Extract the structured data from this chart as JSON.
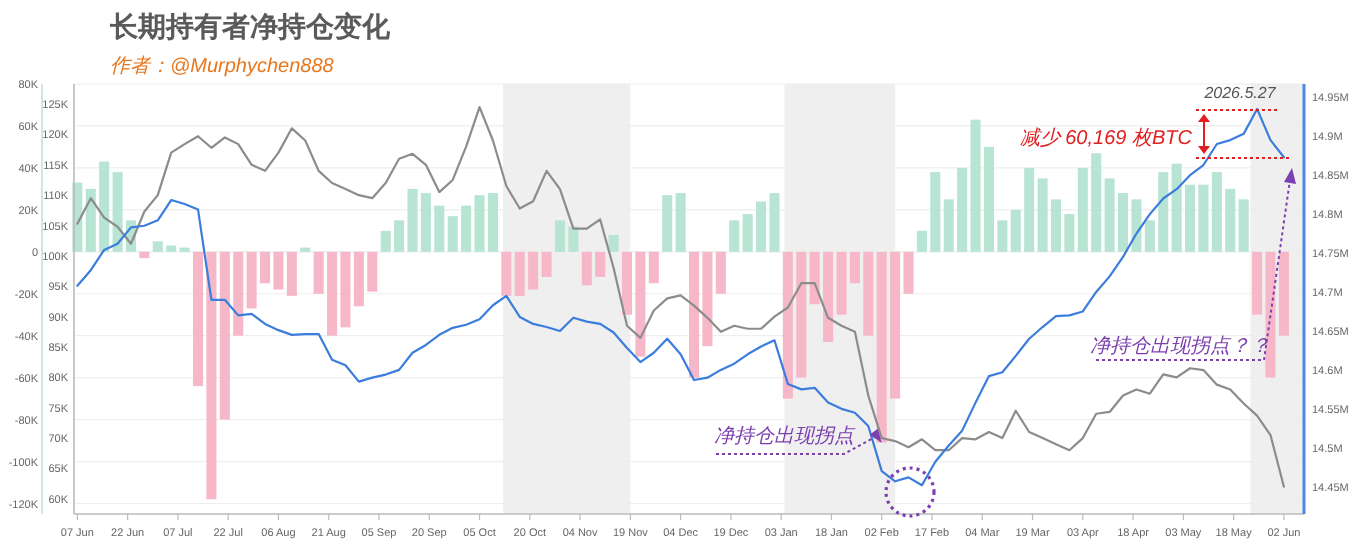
{
  "chart_data": {
    "type": "bar",
    "title": "长期持有者净持仓变化",
    "subtitle": "作者：@Murphychen888",
    "x": [
      "2025-06-07",
      "2025-06-11",
      "2025-06-15",
      "2025-06-19",
      "2025-06-23",
      "2025-06-27",
      "2025-07-01",
      "2025-07-05",
      "2025-07-09",
      "2025-07-13",
      "2025-07-17",
      "2025-07-21",
      "2025-07-25",
      "2025-07-29",
      "2025-08-02",
      "2025-08-06",
      "2025-08-10",
      "2025-08-14",
      "2025-08-18",
      "2025-08-22",
      "2025-08-26",
      "2025-08-30",
      "2025-09-03",
      "2025-09-07",
      "2025-09-11",
      "2025-09-15",
      "2025-09-19",
      "2025-09-23",
      "2025-09-27",
      "2025-10-01",
      "2025-10-05",
      "2025-10-09",
      "2025-10-13",
      "2025-10-17",
      "2025-10-21",
      "2025-10-25",
      "2025-10-29",
      "2025-11-02",
      "2025-11-06",
      "2025-11-10",
      "2025-11-14",
      "2025-11-18",
      "2025-11-22",
      "2025-11-26",
      "2025-11-30",
      "2025-12-04",
      "2025-12-08",
      "2025-12-12",
      "2025-12-16",
      "2025-12-20",
      "2025-12-24",
      "2025-12-28",
      "2026-01-01",
      "2026-01-05",
      "2026-01-09",
      "2026-01-13",
      "2026-01-17",
      "2026-01-21",
      "2026-01-25",
      "2026-01-29",
      "2026-02-02",
      "2026-02-06",
      "2026-02-10",
      "2026-02-14",
      "2026-02-18",
      "2026-02-22",
      "2026-02-26",
      "2026-03-02",
      "2026-03-06",
      "2026-03-10",
      "2026-03-14",
      "2026-03-18",
      "2026-03-22",
      "2026-03-26",
      "2026-03-30",
      "2026-04-03",
      "2026-04-07",
      "2026-04-11",
      "2026-04-15",
      "2026-04-19",
      "2026-04-23",
      "2026-04-27",
      "2026-05-01",
      "2026-05-05",
      "2026-05-09",
      "2026-05-13",
      "2026-05-17",
      "2026-05-21",
      "2026-05-25",
      "2026-05-29",
      "2026-06-02"
    ],
    "xlim": [
      "2025-06-06",
      "2026-06-08"
    ],
    "xticks": [
      {
        "value": "2025-06-07",
        "label": "07 Jun"
      },
      {
        "value": "2025-06-22",
        "label": "22 Jun"
      },
      {
        "value": "2025-07-07",
        "label": "07 Jul"
      },
      {
        "value": "2025-07-22",
        "label": "22 Jul"
      },
      {
        "value": "2025-08-06",
        "label": "06 Aug"
      },
      {
        "value": "2025-08-21",
        "label": "21 Aug"
      },
      {
        "value": "2025-09-05",
        "label": "05 Sep"
      },
      {
        "value": "2025-09-20",
        "label": "20 Sep"
      },
      {
        "value": "2025-10-05",
        "label": "05 Oct"
      },
      {
        "value": "2025-10-20",
        "label": "20 Oct"
      },
      {
        "value": "2025-11-04",
        "label": "04 Nov"
      },
      {
        "value": "2025-11-19",
        "label": "19 Nov"
      },
      {
        "value": "2025-12-04",
        "label": "04 Dec"
      },
      {
        "value": "2025-12-19",
        "label": "19 Dec"
      },
      {
        "value": "2026-01-03",
        "label": "03 Jan"
      },
      {
        "value": "2026-01-18",
        "label": "18 Jan"
      },
      {
        "value": "2026-02-02",
        "label": "02 Feb"
      },
      {
        "value": "2026-02-17",
        "label": "17 Feb"
      },
      {
        "value": "2026-03-04",
        "label": "04 Mar"
      },
      {
        "value": "2026-03-19",
        "label": "19 Mar"
      },
      {
        "value": "2026-04-03",
        "label": "03 Apr"
      },
      {
        "value": "2026-04-18",
        "label": "18 Apr"
      },
      {
        "value": "2026-05-03",
        "label": "03 May"
      },
      {
        "value": "2026-05-18",
        "label": "18 May"
      },
      {
        "value": "2026-06-02",
        "label": "02 Jun"
      }
    ],
    "ylim": [
      -125,
      80
    ],
    "yticks": [
      {
        "value": 80,
        "label": "80K"
      },
      {
        "value": 60,
        "label": "60K"
      },
      {
        "value": 40,
        "label": "40K"
      },
      {
        "value": 20,
        "label": "20K"
      },
      0,
      {
        "value": -20,
        "label": "-20K"
      },
      {
        "value": -40,
        "label": "-40K"
      },
      {
        "value": -60,
        "label": "-60K"
      },
      {
        "value": -80,
        "label": "-80K"
      },
      {
        "value": -100,
        "label": "-100K"
      },
      {
        "value": -120,
        "label": "-120K"
      }
    ],
    "y2lim": [
      57.5,
      128.3
    ],
    "y2ticks": [
      {
        "value": 60,
        "label": "60K"
      },
      {
        "value": 65,
        "label": "65K"
      },
      {
        "value": 70,
        "label": "70K"
      },
      {
        "value": 75,
        "label": "75K"
      },
      {
        "value": 80,
        "label": "80K"
      },
      {
        "value": 85,
        "label": "85K"
      },
      {
        "value": 90,
        "label": "90K"
      },
      {
        "value": 95,
        "label": "95K"
      },
      {
        "value": 100,
        "label": "100K"
      },
      {
        "value": 105,
        "label": "105K"
      },
      {
        "value": 110,
        "label": "110K"
      },
      {
        "value": 115,
        "label": "115K"
      },
      {
        "value": 120,
        "label": "120K"
      },
      {
        "value": 125,
        "label": "125K"
      }
    ],
    "y3lim": [
      14.415,
      14.967
    ],
    "y3ticks": [
      {
        "value": 14.45,
        "label": "14.45M"
      },
      {
        "value": 14.5,
        "label": "14.5M"
      },
      {
        "value": 14.55,
        "label": "14.55M"
      },
      {
        "value": 14.6,
        "label": "14.6M"
      },
      {
        "value": 14.65,
        "label": "14.65M"
      },
      {
        "value": 14.7,
        "label": "14.7M"
      },
      {
        "value": 14.75,
        "label": "14.75M"
      },
      {
        "value": 14.8,
        "label": "14.8M"
      },
      {
        "value": 14.85,
        "label": "14.85M"
      },
      {
        "value": 14.9,
        "label": "14.9M"
      },
      {
        "value": 14.95,
        "label": "14.95M"
      }
    ],
    "grid": "y",
    "bands": [
      {
        "axis": "x",
        "from": "2025-10-12",
        "to": "2025-11-19",
        "color": "#efefef"
      },
      {
        "axis": "x",
        "from": "2026-01-04",
        "to": "2026-02-06",
        "color": "#efefef"
      },
      {
        "axis": "x",
        "from": "2026-05-23",
        "to": "2026-06-08",
        "color": "#efefef"
      }
    ],
    "annotations": [
      "2026.5.27",
      "减少 60,169 枚BTC",
      "净持仓出现拐点？？",
      {
        "text": "净持仓出现拐点",
        "x": "2026-02-02",
        "y": -91
      }
    ],
    "series": [
      {
        "values": [
          33,
          30,
          43,
          38,
          15,
          -3,
          5,
          3,
          2,
          -64,
          -118,
          -80,
          -40,
          -27,
          -15,
          -18,
          -21,
          2,
          -20,
          -40,
          -36,
          -26,
          -19,
          10,
          15,
          30,
          28,
          22,
          17,
          22,
          27,
          28,
          -21,
          -21,
          -18,
          -12,
          15,
          12,
          -16,
          -12,
          8,
          -30,
          -50,
          -15,
          27,
          28,
          -60,
          -45,
          -20,
          15,
          18,
          24,
          28,
          -70,
          -60,
          -25,
          -43,
          -30,
          -15,
          -40,
          -91,
          -70,
          -20,
          10,
          38,
          25,
          40,
          63,
          50,
          15,
          20,
          40,
          35,
          25,
          18,
          40,
          47,
          35,
          28,
          25,
          15,
          38,
          42,
          32,
          32,
          38,
          30,
          25,
          -30,
          -60,
          -40
        ],
        "colors": [
          "#b7e4d3",
          "#b7e4d3",
          "#b7e4d3",
          "#b7e4d3",
          "#b7e4d3",
          "#f6b8c8",
          "#b7e4d3",
          "#b7e4d3",
          "#b7e4d3",
          "#f6b8c8",
          "#f6b8c8",
          "#f6b8c8",
          "#f6b8c8",
          "#f6b8c8",
          "#f6b8c8",
          "#f6b8c8",
          "#f6b8c8",
          "#b7e4d3",
          "#f6b8c8",
          "#f6b8c8",
          "#f6b8c8",
          "#f6b8c8",
          "#f6b8c8",
          "#b7e4d3",
          "#b7e4d3",
          "#b7e4d3",
          "#b7e4d3",
          "#b7e4d3",
          "#b7e4d3",
          "#b7e4d3",
          "#b7e4d3",
          "#b7e4d3",
          "#f6b8c8",
          "#f6b8c8",
          "#f6b8c8",
          "#f6b8c8",
          "#b7e4d3",
          "#b7e4d3",
          "#f6b8c8",
          "#f6b8c8",
          "#b7e4d3",
          "#f6b8c8",
          "#f6b8c8",
          "#f6b8c8",
          "#b7e4d3",
          "#b7e4d3",
          "#f6b8c8",
          "#f6b8c8",
          "#f6b8c8",
          "#b7e4d3",
          "#b7e4d3",
          "#b7e4d3",
          "#b7e4d3",
          "#f6b8c8",
          "#f6b8c8",
          "#f6b8c8",
          "#f6b8c8",
          "#f6b8c8",
          "#f6b8c8",
          "#f6b8c8",
          "#f6b8c8",
          "#f6b8c8",
          "#f6b8c8",
          "#b7e4d3",
          "#b7e4d3",
          "#b7e4d3",
          "#b7e4d3",
          "#b7e4d3",
          "#b7e4d3",
          "#b7e4d3",
          "#b7e4d3",
          "#b7e4d3",
          "#b7e4d3",
          "#b7e4d3",
          "#b7e4d3",
          "#b7e4d3",
          "#b7e4d3",
          "#b7e4d3",
          "#b7e4d3",
          "#b7e4d3",
          "#b7e4d3",
          "#b7e4d3",
          "#b7e4d3",
          "#b7e4d3",
          "#b7e4d3",
          "#b7e4d3",
          "#b7e4d3",
          "#b7e4d3",
          "#f6b8c8",
          "#f6b8c8",
          "#f6b8c8"
        ]
      },
      {
        "type": "line",
        "axis": "y2",
        "color": "#8c8c8c",
        "values": [
          105.3,
          109.5,
          106.3,
          104.8,
          102,
          107.3,
          110,
          117,
          118.4,
          119.7,
          117.8,
          119.5,
          118.4,
          115,
          114,
          117,
          121,
          119,
          114,
          112,
          111,
          110,
          109.5,
          112,
          116,
          116.8,
          115,
          110.5,
          112.5,
          118,
          124.5,
          119,
          111.5,
          107.8,
          109,
          114,
          111,
          104.5,
          104.5,
          106,
          98,
          88.5,
          86.5,
          91,
          93,
          93.5,
          91.8,
          89.8,
          87.5,
          88.5,
          88,
          88,
          90,
          91.5,
          95.5,
          95.5,
          89.8,
          88.5,
          87.5,
          77,
          70,
          69.5,
          68.5,
          69.8,
          68,
          68,
          70,
          69.8,
          71,
          70,
          74.5,
          71,
          70,
          69,
          68,
          70,
          74,
          74.3,
          77,
          78,
          77.3,
          80.5,
          80,
          81.5,
          81.2,
          78.8,
          78,
          75.7,
          73.7,
          70.5,
          62
        ]
      },
      {
        "type": "line",
        "axis": "y3",
        "color": "#3b7ddd",
        "values": [
          14.708,
          14.728,
          14.754,
          14.762,
          14.783,
          14.785,
          14.792,
          14.818,
          14.813,
          14.806,
          14.69,
          14.69,
          14.67,
          14.672,
          14.659,
          14.651,
          14.645,
          14.646,
          14.646,
          14.613,
          14.606,
          14.585,
          14.59,
          14.594,
          14.6,
          14.622,
          14.632,
          14.645,
          14.654,
          14.658,
          14.665,
          14.683,
          14.695,
          14.668,
          14.659,
          14.655,
          14.65,
          14.667,
          14.662,
          14.659,
          14.648,
          14.628,
          14.61,
          14.622,
          14.64,
          14.62,
          14.587,
          14.59,
          14.6,
          14.608,
          14.62,
          14.63,
          14.638,
          14.582,
          14.575,
          14.577,
          14.558,
          14.55,
          14.545,
          14.528,
          14.47,
          14.457,
          14.462,
          14.452,
          14.482,
          14.503,
          14.522,
          14.558,
          14.592,
          14.597,
          14.618,
          14.64,
          14.655,
          14.669,
          14.67,
          14.675,
          14.7,
          14.72,
          14.745,
          14.775,
          14.8,
          14.82,
          14.832,
          14.85,
          14.863,
          14.89,
          14.895,
          14.903,
          14.935,
          14.895,
          14.873
        ]
      }
    ]
  }
}
